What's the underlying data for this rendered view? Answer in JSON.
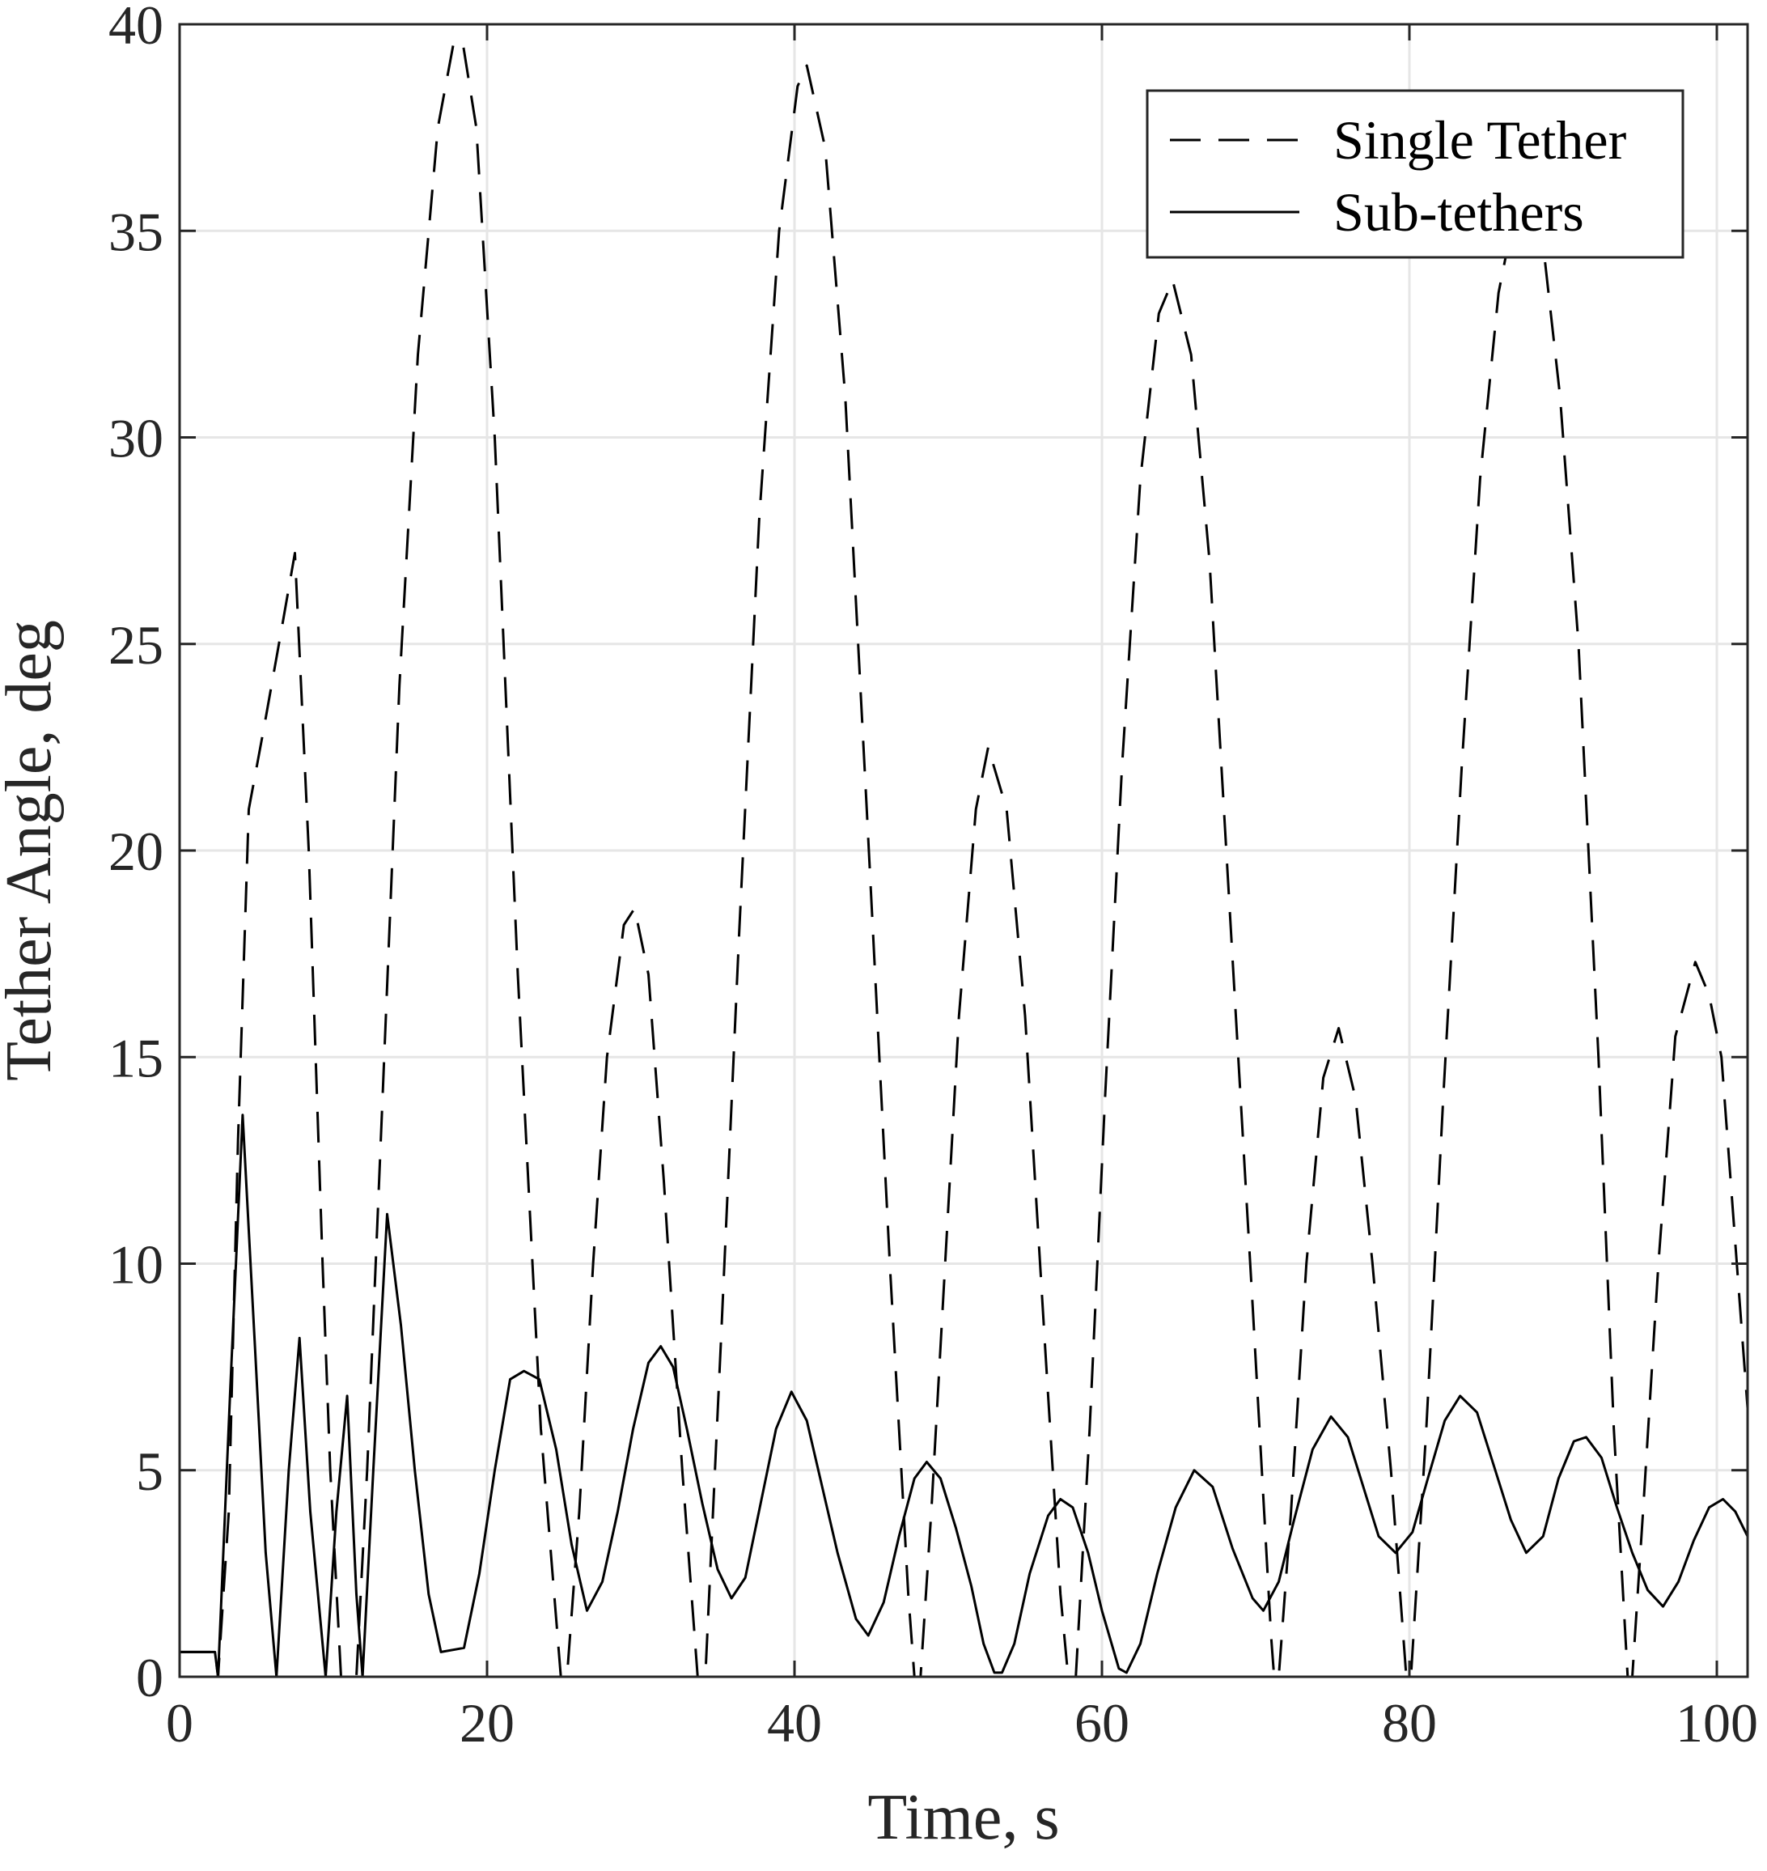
{
  "chart_data": {
    "type": "line",
    "title": "",
    "xlabel": "Time, s",
    "ylabel": "Tether Angle, deg",
    "xlim": [
      0,
      102
    ],
    "ylim": [
      0,
      40
    ],
    "xticks": [
      0,
      20,
      40,
      60,
      80,
      100
    ],
    "yticks": [
      0,
      5,
      10,
      15,
      20,
      25,
      30,
      35,
      40
    ],
    "grid": true,
    "legend": "top-right",
    "series": [
      {
        "name": "Single Tether",
        "style": "dashed",
        "color": "#000000",
        "points": [
          [
            0,
            0.6
          ],
          [
            2.3,
            0.6
          ],
          [
            2.5,
            0
          ],
          [
            3.2,
            4
          ],
          [
            3.8,
            13
          ],
          [
            4.5,
            21
          ],
          [
            5.5,
            23
          ],
          [
            6.7,
            25.5
          ],
          [
            7.5,
            27.2
          ],
          [
            8.4,
            20
          ],
          [
            9.3,
            10
          ],
          [
            9.8,
            5
          ],
          [
            10.5,
            0
          ],
          [
            11.5,
            0
          ],
          [
            12.2,
            5
          ],
          [
            13.2,
            14
          ],
          [
            14.3,
            24
          ],
          [
            15.5,
            32
          ],
          [
            16.8,
            37.5
          ],
          [
            17.8,
            39.5
          ],
          [
            18.4,
            39.6
          ],
          [
            19.3,
            37.5
          ],
          [
            20.5,
            30
          ],
          [
            22,
            17
          ],
          [
            23.5,
            6
          ],
          [
            24.8,
            0
          ],
          [
            25.2,
            0
          ],
          [
            26,
            4
          ],
          [
            26.9,
            10
          ],
          [
            27.8,
            15
          ],
          [
            28.9,
            18.2
          ],
          [
            29.6,
            18.6
          ],
          [
            30.5,
            17
          ],
          [
            31.5,
            12
          ],
          [
            32.7,
            5
          ],
          [
            33.7,
            0
          ],
          [
            34.2,
            0
          ],
          [
            35.2,
            8
          ],
          [
            36.4,
            18
          ],
          [
            37.7,
            28
          ],
          [
            39,
            35
          ],
          [
            40.2,
            38.5
          ],
          [
            40.8,
            39
          ],
          [
            42,
            37
          ],
          [
            43.3,
            31
          ],
          [
            44.7,
            21
          ],
          [
            46.2,
            10
          ],
          [
            47.4,
            2
          ],
          [
            47.8,
            0
          ],
          [
            48.2,
            0
          ],
          [
            48.9,
            4
          ],
          [
            49.8,
            10
          ],
          [
            50.7,
            16
          ],
          [
            51.8,
            21
          ],
          [
            52.6,
            22.5
          ],
          [
            53.8,
            21
          ],
          [
            55,
            16
          ],
          [
            56.3,
            8
          ],
          [
            57.3,
            2
          ],
          [
            57.8,
            0
          ],
          [
            58.3,
            0
          ],
          [
            59.2,
            6
          ],
          [
            60.2,
            14
          ],
          [
            61.3,
            22
          ],
          [
            62.5,
            29
          ],
          [
            63.7,
            33
          ],
          [
            64.6,
            33.8
          ],
          [
            65.8,
            32
          ],
          [
            67,
            27
          ],
          [
            68.4,
            18
          ],
          [
            69.8,
            9
          ],
          [
            71,
            1
          ],
          [
            71.2,
            0
          ],
          [
            71.5,
            0
          ],
          [
            72.3,
            4
          ],
          [
            73.3,
            10
          ],
          [
            74.4,
            14.5
          ],
          [
            75.4,
            15.7
          ],
          [
            76.5,
            14
          ],
          [
            77.6,
            10
          ],
          [
            78.8,
            5
          ],
          [
            79.8,
            0
          ],
          [
            80.1,
            0
          ],
          [
            81.1,
            6
          ],
          [
            82.2,
            14
          ],
          [
            83.4,
            22
          ],
          [
            84.6,
            29
          ],
          [
            85.8,
            33.5
          ],
          [
            86.6,
            35
          ],
          [
            88.6,
            35
          ],
          [
            89.8,
            31
          ],
          [
            91,
            25
          ],
          [
            92.3,
            15
          ],
          [
            93.3,
            6
          ],
          [
            94.2,
            0
          ],
          [
            94.5,
            0
          ],
          [
            95.2,
            4
          ],
          [
            96.2,
            10
          ],
          [
            97.3,
            15.5
          ],
          [
            98.6,
            17.3
          ],
          [
            99.5,
            16.5
          ],
          [
            100.3,
            15
          ],
          [
            101.1,
            11
          ],
          [
            102,
            6.5
          ]
        ]
      },
      {
        "name": "Sub-tethers",
        "style": "solid",
        "color": "#000000",
        "points": [
          [
            0,
            0.6
          ],
          [
            2.3,
            0.6
          ],
          [
            2.5,
            0
          ],
          [
            3.3,
            7
          ],
          [
            4.1,
            13.6
          ],
          [
            4.9,
            8
          ],
          [
            5.6,
            3
          ],
          [
            6.3,
            0
          ],
          [
            7.1,
            5
          ],
          [
            7.8,
            8.2
          ],
          [
            8.5,
            4
          ],
          [
            9.5,
            0
          ],
          [
            10.2,
            4
          ],
          [
            10.9,
            6.8
          ],
          [
            11.5,
            2
          ],
          [
            11.9,
            0
          ],
          [
            12.6,
            5
          ],
          [
            13.5,
            11.2
          ],
          [
            14.4,
            8.5
          ],
          [
            15.3,
            5
          ],
          [
            16.2,
            2
          ],
          [
            17,
            0.6
          ],
          [
            18.5,
            0.7
          ],
          [
            19.5,
            2.5
          ],
          [
            20.5,
            5
          ],
          [
            21.5,
            7.2
          ],
          [
            22.4,
            7.4
          ],
          [
            23.4,
            7.2
          ],
          [
            24.5,
            5.5
          ],
          [
            25.5,
            3.2
          ],
          [
            26.5,
            1.6
          ],
          [
            27.5,
            2.3
          ],
          [
            28.5,
            4
          ],
          [
            29.5,
            6
          ],
          [
            30.5,
            7.6
          ],
          [
            31.3,
            8
          ],
          [
            32.1,
            7.5
          ],
          [
            33,
            6
          ],
          [
            34,
            4.2
          ],
          [
            35,
            2.6
          ],
          [
            35.9,
            1.9
          ],
          [
            36.8,
            2.4
          ],
          [
            37.8,
            4.2
          ],
          [
            38.8,
            6
          ],
          [
            39.8,
            6.9
          ],
          [
            40.8,
            6.2
          ],
          [
            41.8,
            4.6
          ],
          [
            42.8,
            3
          ],
          [
            44,
            1.4
          ],
          [
            44.8,
            1
          ],
          [
            45.8,
            1.8
          ],
          [
            46.8,
            3.4
          ],
          [
            47.8,
            4.8
          ],
          [
            48.6,
            5.2
          ],
          [
            49.5,
            4.8
          ],
          [
            50.5,
            3.6
          ],
          [
            51.5,
            2.2
          ],
          [
            52.3,
            0.8
          ],
          [
            53,
            0.1
          ],
          [
            53.5,
            0.1
          ],
          [
            54.3,
            0.8
          ],
          [
            55.3,
            2.5
          ],
          [
            56.5,
            3.9
          ],
          [
            57.3,
            4.3
          ],
          [
            58.1,
            4.1
          ],
          [
            59.1,
            3
          ],
          [
            60,
            1.6
          ],
          [
            61.1,
            0.2
          ],
          [
            61.6,
            0.1
          ],
          [
            62.5,
            0.8
          ],
          [
            63.6,
            2.5
          ],
          [
            64.8,
            4.1
          ],
          [
            66,
            5
          ],
          [
            67.2,
            4.6
          ],
          [
            68.5,
            3.1
          ],
          [
            69.8,
            1.9
          ],
          [
            70.5,
            1.6
          ],
          [
            71.5,
            2.3
          ],
          [
            72.5,
            3.8
          ],
          [
            73.7,
            5.5
          ],
          [
            74.9,
            6.3
          ],
          [
            76,
            5.8
          ],
          [
            77,
            4.6
          ],
          [
            78,
            3.4
          ],
          [
            79.1,
            3
          ],
          [
            80.2,
            3.5
          ],
          [
            81.2,
            4.8
          ],
          [
            82.3,
            6.2
          ],
          [
            83.3,
            6.8
          ],
          [
            84.4,
            6.4
          ],
          [
            85.5,
            5.1
          ],
          [
            86.6,
            3.8
          ],
          [
            87.6,
            3
          ],
          [
            88.7,
            3.4
          ],
          [
            89.7,
            4.8
          ],
          [
            90.7,
            5.7
          ],
          [
            91.5,
            5.8
          ],
          [
            92.5,
            5.3
          ],
          [
            93.5,
            4.1
          ],
          [
            94.5,
            3
          ],
          [
            95.5,
            2.1
          ],
          [
            96.5,
            1.7
          ],
          [
            97.5,
            2.3
          ],
          [
            98.5,
            3.3
          ],
          [
            99.5,
            4.1
          ],
          [
            100.4,
            4.3
          ],
          [
            101.2,
            4
          ],
          [
            102,
            3.4
          ]
        ]
      }
    ]
  }
}
